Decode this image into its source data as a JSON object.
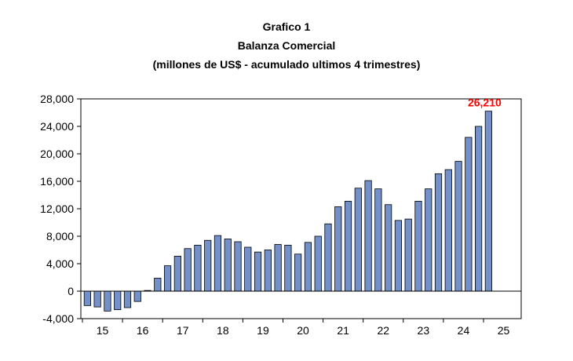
{
  "chart_data": {
    "type": "bar",
    "title": "Grafico 1",
    "subtitle": "Balanza Comercial",
    "subtitle2": "(millones de US$ - acumulado ultimos 4 trimestres)",
    "xlabel": "",
    "ylabel": "",
    "ylim": [
      -4000,
      28000
    ],
    "yticks": [
      -4000,
      0,
      4000,
      8000,
      12000,
      16000,
      20000,
      24000,
      28000
    ],
    "ytick_labels": [
      "-4,000",
      "0",
      "4,000",
      "8,000",
      "12,000",
      "16,000",
      "20,000",
      "24,000",
      "28,000"
    ],
    "xtick_labels": [
      "15",
      "16",
      "17",
      "18",
      "19",
      "20",
      "21",
      "22",
      "23",
      "24",
      "25"
    ],
    "grid": false,
    "bar_color": "#7391c8",
    "bar_edge_color": "#000000",
    "annotation": {
      "text": "26,210",
      "color": "#ff0000"
    },
    "values": [
      -2100,
      -2300,
      -2900,
      -2700,
      -2400,
      -1500,
      100,
      1900,
      3700,
      5100,
      6200,
      6700,
      7400,
      8100,
      7600,
      7200,
      6400,
      5700,
      6000,
      6800,
      6700,
      5400,
      7100,
      8000,
      9800,
      12300,
      13100,
      15000,
      16100,
      14900,
      12600,
      10300,
      10500,
      13100,
      14900,
      17100,
      17700,
      18900,
      22400,
      24000,
      26210
    ]
  }
}
